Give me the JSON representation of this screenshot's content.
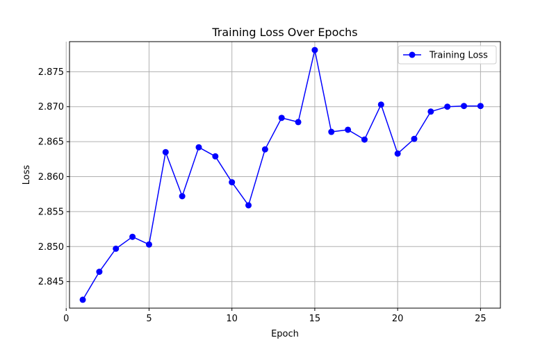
{
  "chart_data": {
    "type": "line",
    "title": "Training Loss Over Epochs",
    "xlabel": "Epoch",
    "ylabel": "Loss",
    "xlim": [
      0.2,
      26.2
    ],
    "ylim": [
      2.8412,
      2.8793
    ],
    "xticks": [
      0,
      5,
      10,
      15,
      20,
      25
    ],
    "yticks": [
      2.845,
      2.85,
      2.855,
      2.86,
      2.865,
      2.87,
      2.875
    ],
    "grid": true,
    "legend_position": "top-right",
    "series": [
      {
        "name": "Training Loss",
        "color": "#0000ff",
        "marker": "circle",
        "x": [
          1,
          2,
          3,
          4,
          5,
          6,
          7,
          8,
          9,
          10,
          11,
          12,
          13,
          14,
          15,
          16,
          17,
          18,
          19,
          20,
          21,
          22,
          23,
          24,
          25
        ],
        "y": [
          2.8424,
          2.8464,
          2.8497,
          2.8514,
          2.8503,
          2.8635,
          2.8572,
          2.8642,
          2.8629,
          2.8592,
          2.8559,
          2.8639,
          2.8684,
          2.8678,
          2.8781,
          2.8664,
          2.8667,
          2.8653,
          2.8703,
          2.8633,
          2.8654,
          2.8693,
          2.87,
          2.8701,
          2.8701
        ]
      }
    ]
  }
}
